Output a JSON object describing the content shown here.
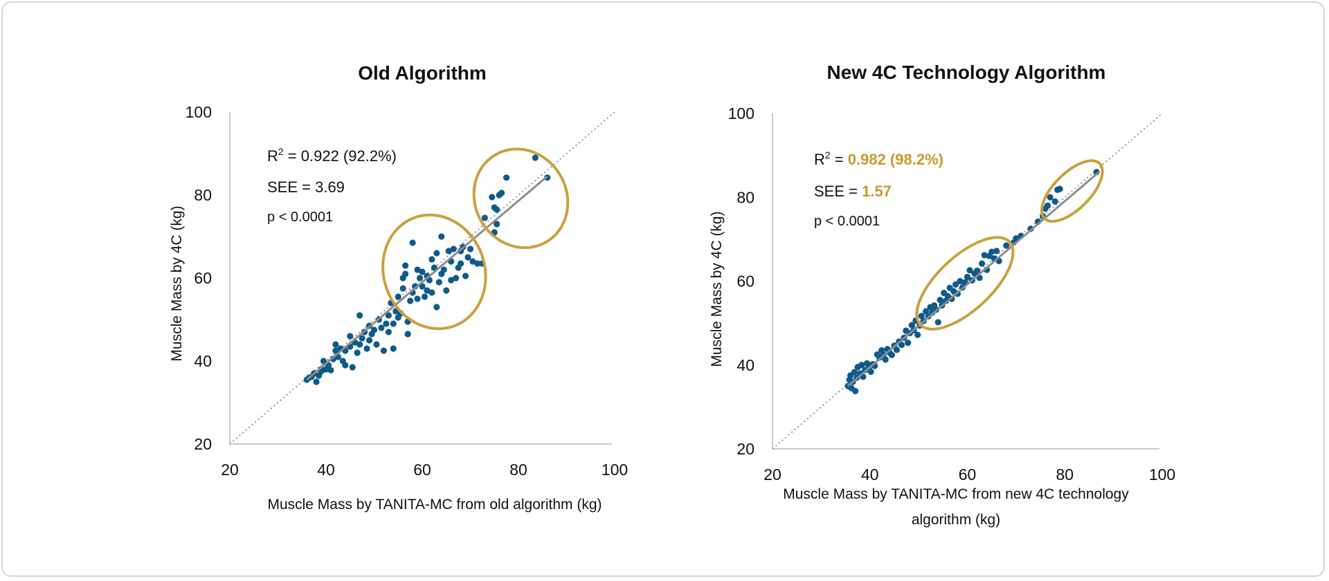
{
  "colors": {
    "point": "#0e5a8a",
    "ellipse": "#c9a03f",
    "fit_line": "#8c8c8c",
    "identity_line": "#8c8c8c",
    "axis": "#b9b9b9",
    "highlight_text": "#c99a2e"
  },
  "chart_data": [
    {
      "type": "scatter",
      "title": "Old Algorithm",
      "xlabel": "Muscle Mass by TANITA-MC  from old algorithm (kg)",
      "ylabel": "Muscle Mass by 4C (kg)",
      "xlim": [
        20,
        100
      ],
      "ylim": [
        20,
        100
      ],
      "xticks": [
        "20",
        "40",
        "60",
        "80",
        "100"
      ],
      "yticks": [
        "20",
        "40",
        "60",
        "80",
        "100"
      ],
      "stats": {
        "r2_prefix": "R",
        "r2_sup": "2",
        "r2_eq": " = ",
        "r2_value": "0.922 (92.2%)",
        "see_prefix": "SEE = ",
        "see_value": "3.69",
        "p": "p < 0.0001"
      },
      "fit_line": {
        "x": [
          36,
          86
        ],
        "y": [
          35.5,
          84.5
        ]
      },
      "identity_line": {
        "x": [
          20,
          100
        ],
        "y": [
          20,
          100
        ]
      },
      "highlight_ellipses": [
        {
          "cx": 62.5,
          "cy": 61.5,
          "rx": 10.5,
          "ry": 12,
          "angle": -20
        },
        {
          "cx": 80.5,
          "cy": 79.2,
          "rx": 9.5,
          "ry": 10.5,
          "angle": -30
        }
      ],
      "points": [
        [
          36,
          35.5
        ],
        [
          36.5,
          36
        ],
        [
          37,
          36.2
        ],
        [
          37.5,
          37
        ],
        [
          38,
          35
        ],
        [
          38.5,
          36.5
        ],
        [
          39,
          38
        ],
        [
          39.5,
          40
        ],
        [
          39,
          37.5
        ],
        [
          40,
          38
        ],
        [
          40.5,
          39
        ],
        [
          41,
          37.8
        ],
        [
          41.5,
          40.5
        ],
        [
          42,
          42.5
        ],
        [
          42,
          44
        ],
        [
          42.5,
          41
        ],
        [
          43,
          43
        ],
        [
          43.5,
          40
        ],
        [
          44,
          39
        ],
        [
          44,
          42.5
        ],
        [
          45,
          43.5
        ],
        [
          45,
          46
        ],
        [
          45.5,
          38.5
        ],
        [
          46,
          44.5
        ],
        [
          46.5,
          42
        ],
        [
          47,
          44
        ],
        [
          47,
          51
        ],
        [
          47.5,
          45.5
        ],
        [
          48,
          47
        ],
        [
          48.5,
          43
        ],
        [
          49,
          45
        ],
        [
          49,
          48.5
        ],
        [
          49.5,
          46.5
        ],
        [
          50,
          47.5
        ],
        [
          50.5,
          44
        ],
        [
          51,
          50
        ],
        [
          51.5,
          48
        ],
        [
          52,
          42.5
        ],
        [
          52.5,
          49
        ],
        [
          53,
          47
        ],
        [
          53,
          51
        ],
        [
          53.5,
          54
        ],
        [
          54,
          49
        ],
        [
          54,
          43
        ],
        [
          54.5,
          52
        ],
        [
          55,
          50.5
        ],
        [
          55,
          55.5
        ],
        [
          55.5,
          51.5
        ],
        [
          56,
          57.5
        ],
        [
          56,
          60
        ],
        [
          56.5,
          61
        ],
        [
          56.5,
          63
        ],
        [
          57,
          49.5
        ],
        [
          57,
          46.5
        ],
        [
          57.5,
          54.5
        ],
        [
          58,
          68.5
        ],
        [
          58,
          56.5
        ],
        [
          58.5,
          58
        ],
        [
          59,
          62
        ],
        [
          59,
          55
        ],
        [
          59.5,
          60
        ],
        [
          60,
          61.5
        ],
        [
          60,
          58
        ],
        [
          60.5,
          55.5
        ],
        [
          61,
          57
        ],
        [
          61,
          60.5
        ],
        [
          61.5,
          59.5
        ],
        [
          62,
          56.5
        ],
        [
          62,
          64.5
        ],
        [
          62.5,
          62.5
        ],
        [
          63,
          66
        ],
        [
          63,
          53
        ],
        [
          63.5,
          59
        ],
        [
          64,
          70
        ],
        [
          64,
          61
        ],
        [
          64.5,
          62
        ],
        [
          65,
          57
        ],
        [
          65.5,
          66.5
        ],
        [
          66,
          64
        ],
        [
          66,
          59.5
        ],
        [
          66.5,
          67
        ],
        [
          67,
          60
        ],
        [
          67.5,
          62.5
        ],
        [
          68,
          66.5
        ],
        [
          68,
          63.5
        ],
        [
          68.5,
          67.5
        ],
        [
          69,
          60.5
        ],
        [
          69.5,
          65
        ],
        [
          70,
          67
        ],
        [
          70.5,
          64
        ],
        [
          71.5,
          63.5
        ],
        [
          72.5,
          63.5
        ],
        [
          73,
          74.5
        ],
        [
          74.5,
          79.5
        ],
        [
          75,
          77
        ],
        [
          75,
          71
        ],
        [
          75.5,
          73
        ],
        [
          76,
          80
        ],
        [
          76.5,
          80.5
        ],
        [
          77.5,
          84.2
        ],
        [
          83.5,
          89
        ],
        [
          86,
          84.2
        ],
        [
          75.5,
          76.5
        ]
      ]
    },
    {
      "type": "scatter",
      "title": "New 4C Technology Algorithm",
      "xlabel": "Muscle Mass by TANITA-MC from new 4C technology algorithm (kg)",
      "xlabel_lines": [
        "Muscle Mass by TANITA-MC from new 4C technology",
        "algorithm (kg)"
      ],
      "ylabel": "Muscle Mass by 4C (kg)",
      "xlim": [
        20,
        100
      ],
      "ylim": [
        20,
        100
      ],
      "xticks": [
        "20",
        "40",
        "60",
        "80",
        "100"
      ],
      "yticks": [
        "20",
        "40",
        "60",
        "80",
        "100"
      ],
      "stats": {
        "r2_prefix": "R",
        "r2_sup": "2",
        "r2_eq": " = ",
        "r2_value": "0.982 (98.2%)",
        "see_prefix": "SEE = ",
        "see_value": "1.57",
        "p": "p < 0.0001"
      },
      "fit_line": {
        "x": [
          35.5,
          87
        ],
        "y": [
          35,
          86
        ]
      },
      "identity_line": {
        "x": [
          20,
          100
        ],
        "y": [
          20,
          100
        ]
      },
      "highlight_ellipses": [
        {
          "cx": 59.5,
          "cy": 59.5,
          "rx": 12.5,
          "ry": 5.5,
          "angle": -43
        },
        {
          "cx": 81.5,
          "cy": 81.5,
          "rx": 8,
          "ry": 3.7,
          "angle": -45
        }
      ],
      "points": [
        [
          35.5,
          35
        ],
        [
          35.8,
          36.5
        ],
        [
          36,
          37.5
        ],
        [
          36.2,
          34.5
        ],
        [
          36.5,
          36
        ],
        [
          36.8,
          38.3
        ],
        [
          37,
          33.8
        ],
        [
          37.3,
          37
        ],
        [
          37.5,
          39.5
        ],
        [
          38,
          38
        ],
        [
          38.3,
          40
        ],
        [
          38.6,
          37.2
        ],
        [
          39,
          38.8
        ],
        [
          39.4,
          40.4
        ],
        [
          39.8,
          39.3
        ],
        [
          40.2,
          38.4
        ],
        [
          40.6,
          40.2
        ],
        [
          41,
          39.8
        ],
        [
          41.5,
          42.5
        ],
        [
          42,
          41.8
        ],
        [
          42.4,
          43.5
        ],
        [
          42.8,
          42.5
        ],
        [
          43.2,
          41.3
        ],
        [
          43.6,
          43.8
        ],
        [
          44,
          43
        ],
        [
          44.5,
          42.4
        ],
        [
          45,
          44.6
        ],
        [
          45.5,
          43.6
        ],
        [
          46,
          45.6
        ],
        [
          46.5,
          44.8
        ],
        [
          47,
          46.5
        ],
        [
          47.4,
          48.2
        ],
        [
          47.8,
          45.3
        ],
        [
          48.2,
          47.6
        ],
        [
          48.6,
          49.5
        ],
        [
          49,
          48.3
        ],
        [
          49.4,
          50.6
        ],
        [
          49.8,
          47.2
        ],
        [
          50.2,
          49.4
        ],
        [
          50.6,
          51.7
        ],
        [
          51,
          50.5
        ],
        [
          51.5,
          52.8
        ],
        [
          52,
          51.6
        ],
        [
          52.4,
          53.8
        ],
        [
          52.8,
          52.5
        ],
        [
          53.2,
          54.2
        ],
        [
          53.6,
          53.2
        ],
        [
          54,
          50.2
        ],
        [
          54.4,
          55.5
        ],
        [
          54.8,
          54.2
        ],
        [
          55.2,
          57.2
        ],
        [
          55.6,
          55.3
        ],
        [
          56,
          56.4
        ],
        [
          56.4,
          58.4
        ],
        [
          56.8,
          55.8
        ],
        [
          57.2,
          57.6
        ],
        [
          57.6,
          59.2
        ],
        [
          58,
          57
        ],
        [
          58.5,
          60
        ],
        [
          59,
          58.5
        ],
        [
          59.5,
          59.7
        ],
        [
          60,
          61
        ],
        [
          60.5,
          62.6
        ],
        [
          61,
          60.2
        ],
        [
          61.5,
          61.8
        ],
        [
          62,
          62.5
        ],
        [
          62.5,
          60.8
        ],
        [
          63,
          64.2
        ],
        [
          63.5,
          66.2
        ],
        [
          64,
          62.7
        ],
        [
          64.5,
          66
        ],
        [
          65,
          67
        ],
        [
          65.5,
          65.4
        ],
        [
          66,
          67.2
        ],
        [
          66.5,
          64.8
        ],
        [
          68,
          68.5
        ],
        [
          69.5,
          69.2
        ],
        [
          70,
          70.2
        ],
        [
          71,
          70.8
        ],
        [
          73,
          72.5
        ],
        [
          74.5,
          74.2
        ],
        [
          75.5,
          75.5
        ],
        [
          76,
          77.3
        ],
        [
          76.5,
          78
        ],
        [
          77,
          80
        ],
        [
          78,
          79
        ],
        [
          78.5,
          81.8
        ],
        [
          79,
          82
        ],
        [
          86.5,
          86
        ]
      ]
    }
  ]
}
